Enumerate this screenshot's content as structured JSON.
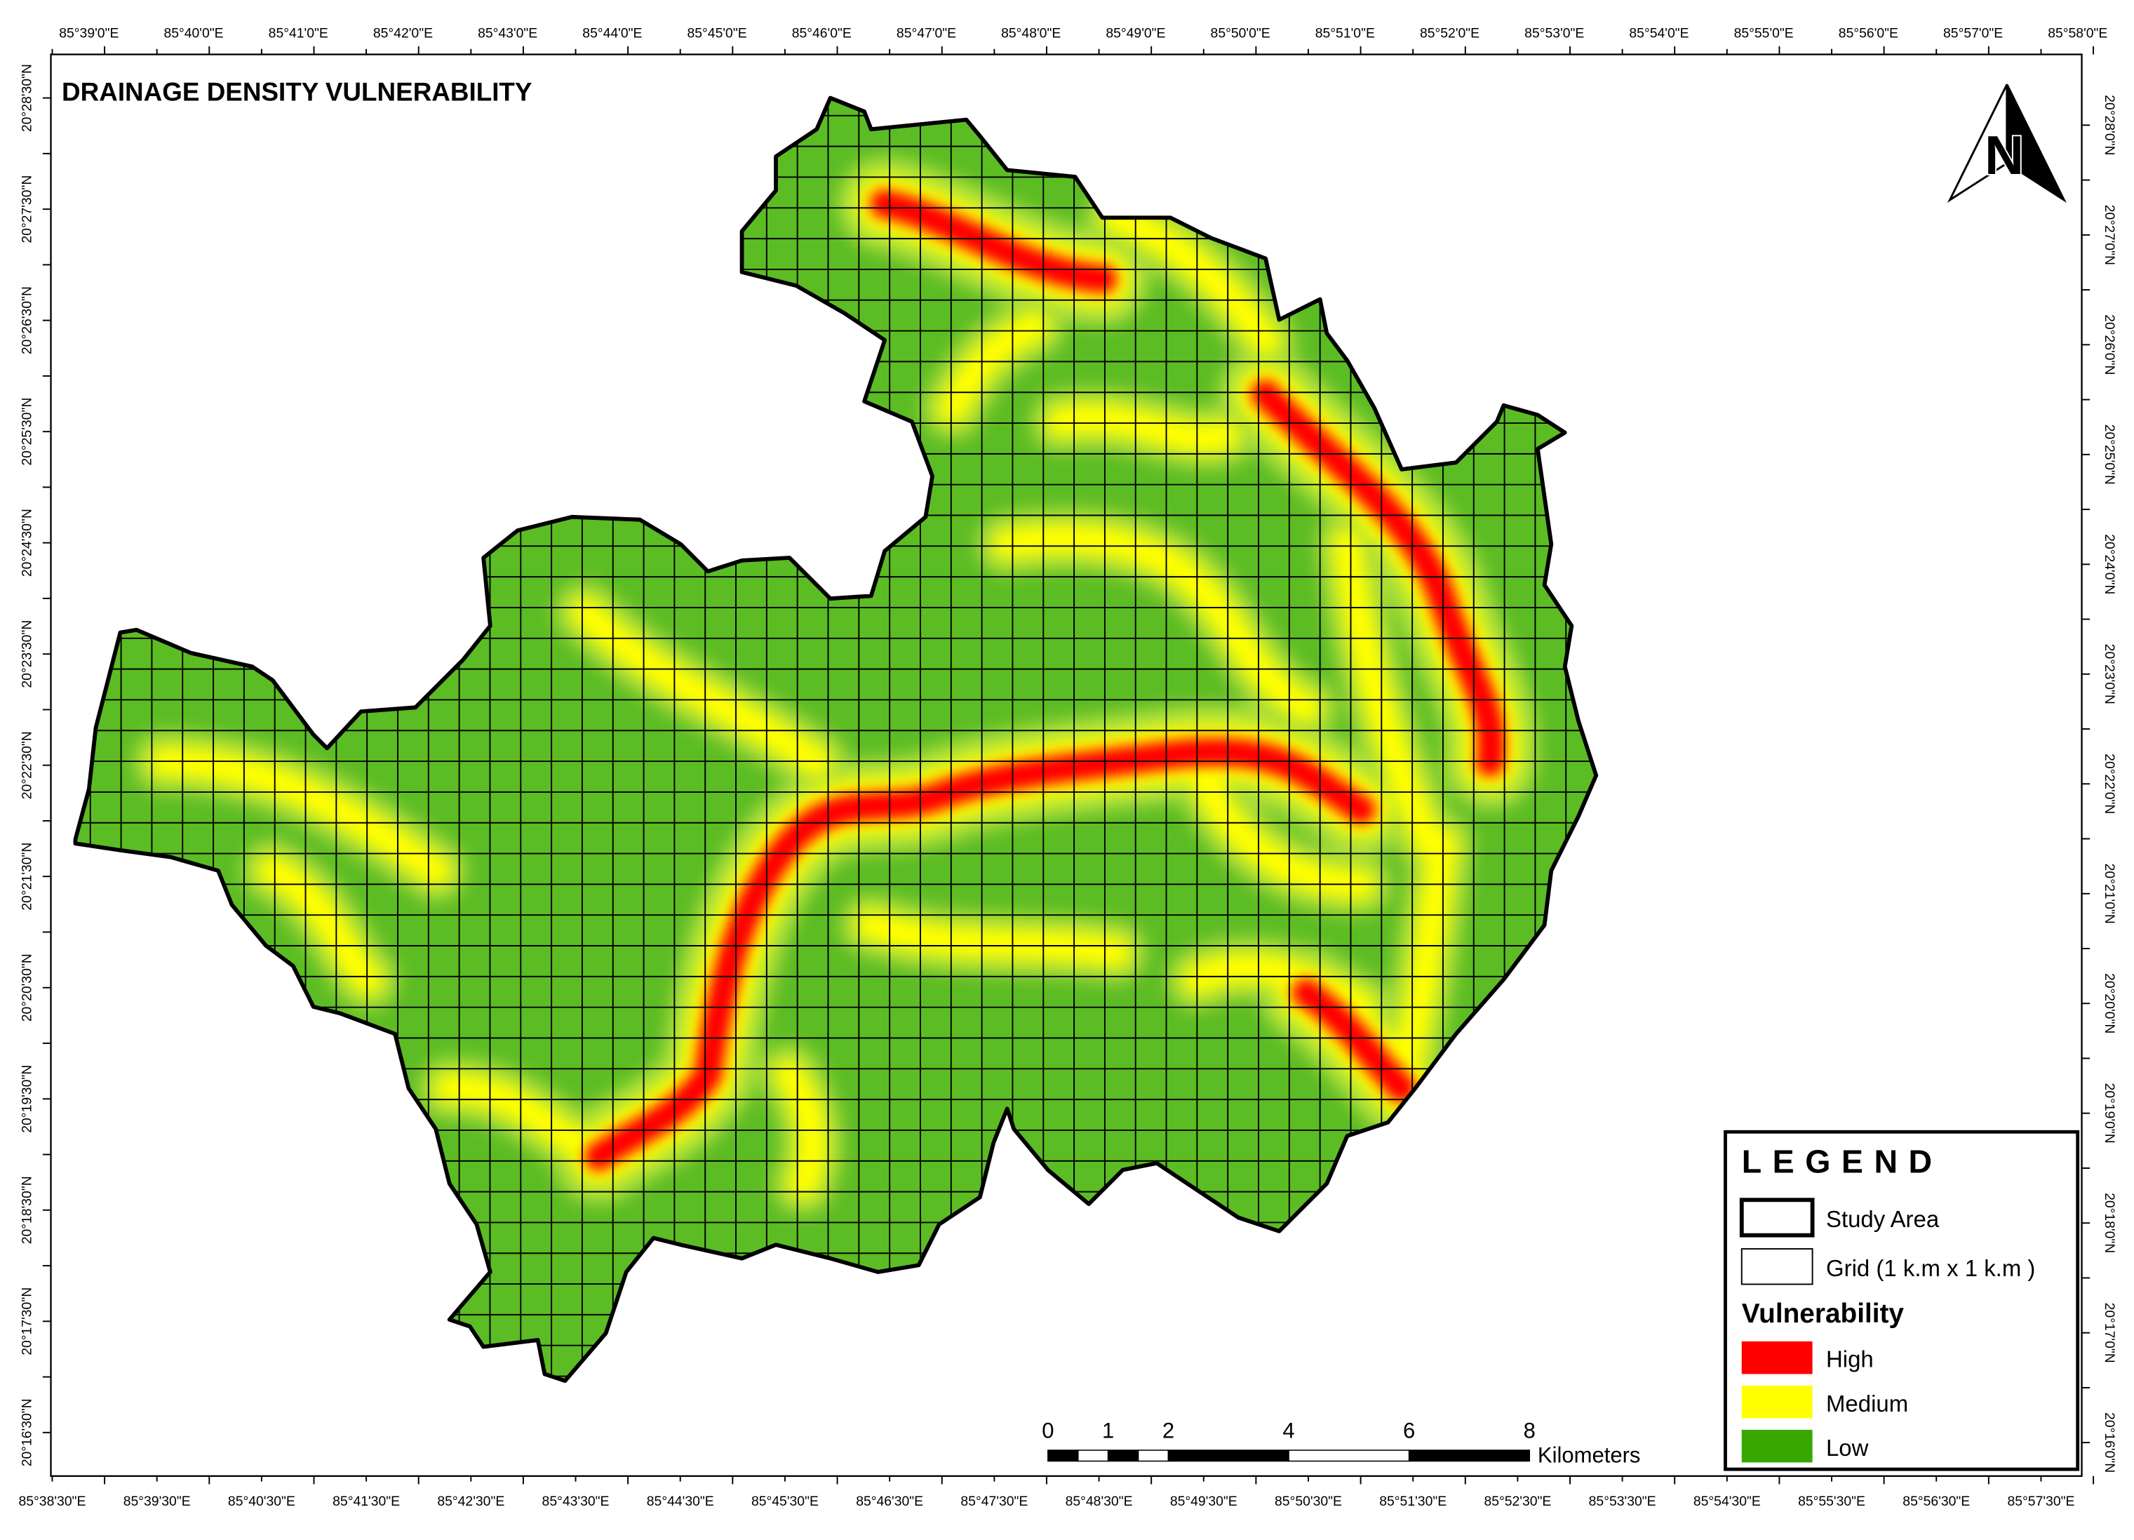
{
  "title": "DRAINAGE DENSITY VULNERABILITY",
  "map_frame": {
    "top_labels": [
      "85°39'0\"E",
      "85°40'0\"E",
      "85°41'0\"E",
      "85°42'0\"E",
      "85°43'0\"E",
      "85°44'0\"E",
      "85°45'0\"E",
      "85°46'0\"E",
      "85°47'0\"E",
      "85°48'0\"E",
      "85°49'0\"E",
      "85°50'0\"E",
      "85°51'0\"E",
      "85°52'0\"E",
      "85°53'0\"E",
      "85°54'0\"E",
      "85°55'0\"E",
      "85°56'0\"E",
      "85°57'0\"E",
      "85°58'0\"E"
    ],
    "bottom_labels": [
      "85°38'30\"E",
      "85°39'30\"E",
      "85°40'30\"E",
      "85°41'30\"E",
      "85°42'30\"E",
      "85°43'30\"E",
      "85°44'30\"E",
      "85°45'30\"E",
      "85°46'30\"E",
      "85°47'30\"E",
      "85°48'30\"E",
      "85°49'30\"E",
      "85°50'30\"E",
      "85°51'30\"E",
      "85°52'30\"E",
      "85°53'30\"E",
      "85°54'30\"E",
      "85°55'30\"E",
      "85°56'30\"E",
      "85°57'30\"E"
    ],
    "left_labels": [
      "20°28'30\"N",
      "20°27'30\"N",
      "20°26'30\"N",
      "20°25'30\"N",
      "20°24'30\"N",
      "20°23'30\"N",
      "20°22'30\"N",
      "20°21'30\"N",
      "20°20'30\"N",
      "20°19'30\"N",
      "20°18'30\"N",
      "20°17'30\"N",
      "20°16'30\"N"
    ],
    "right_labels": [
      "20°28'0\"N",
      "20°27'0\"N",
      "20°26'0\"N",
      "20°25'0\"N",
      "20°24'0\"N",
      "20°23'0\"N",
      "20°22'0\"N",
      "20°21'0\"N",
      "20°20'0\"N",
      "20°19'0\"N",
      "20°18'0\"N",
      "20°17'0\"N",
      "20°16'0\"N"
    ]
  },
  "north_arrow": "N",
  "legend": {
    "title": "LEGEND",
    "items": [
      {
        "label": "Study Area"
      },
      {
        "label": "Grid (1 k.m x 1 k.m )"
      }
    ],
    "vulnerability_title": "Vulnerability",
    "classes": [
      {
        "label": "High",
        "color": "#ff0000"
      },
      {
        "label": "Medium",
        "color": "#ffff00"
      },
      {
        "label": "Low",
        "color": "#38a800"
      }
    ]
  },
  "scale_bar": {
    "ticks": [
      0,
      1,
      2,
      4,
      6,
      8
    ],
    "unit": "Kilometers"
  }
}
